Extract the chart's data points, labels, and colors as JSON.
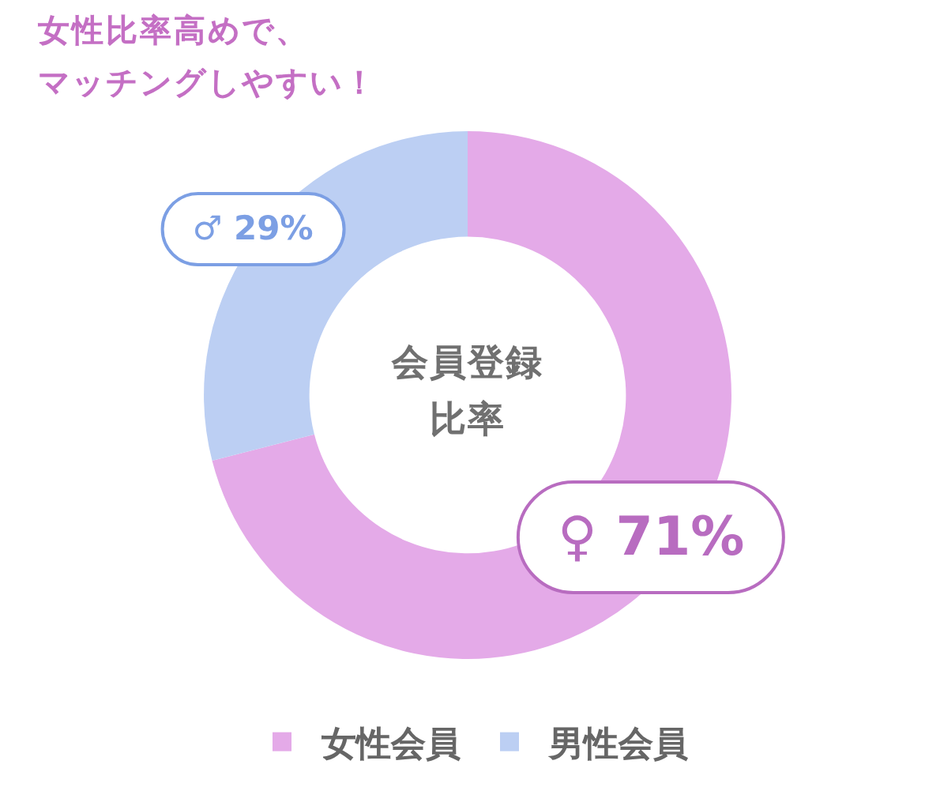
{
  "chart_data": {
    "type": "donut",
    "title": "女性比率高めで、マッチングしやすい！",
    "annotations": [
      "会員登録比率"
    ],
    "categories": [
      "女性会員",
      "男性会員"
    ],
    "values": [
      71,
      29
    ],
    "colors": [
      "#e4aae8",
      "#bccff3"
    ],
    "value_labels": [
      "♀ 71%",
      "♂ 29%"
    ],
    "legend": "bottom"
  }
}
